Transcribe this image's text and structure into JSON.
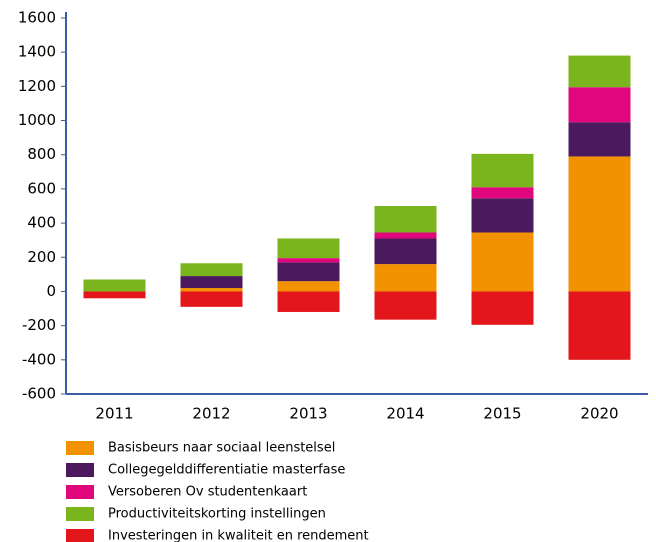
{
  "chart_data": {
    "type": "stacked_bar",
    "categories": [
      "2011",
      "2012",
      "2013",
      "2014",
      "2015",
      "2020"
    ],
    "series": [
      {
        "name": "Basisbeurs naar sociaal leenstelsel",
        "color": "#f39200",
        "values": [
          0,
          20,
          60,
          160,
          345,
          790
        ]
      },
      {
        "name": "Collegegelddifferentiatie masterfase",
        "color": "#4b1a5e",
        "values": [
          0,
          70,
          110,
          150,
          200,
          200
        ]
      },
      {
        "name": "Versoberen Ov studentenkaart",
        "color": "#e0077d",
        "values": [
          0,
          0,
          25,
          35,
          65,
          205
        ]
      },
      {
        "name": "Productiviteitskorting instellingen",
        "color": "#7ab51d",
        "values": [
          70,
          75,
          115,
          155,
          195,
          185
        ]
      },
      {
        "name": "Investeringen in kwaliteit en rendement",
        "color": "#e3161b",
        "values": [
          -40,
          -90,
          -120,
          -165,
          -195,
          -400
        ]
      }
    ],
    "ylim": [
      -600,
      1600
    ],
    "yticks": [
      -600,
      -400,
      -200,
      0,
      200,
      400,
      600,
      800,
      1000,
      1200,
      1400,
      1600
    ],
    "grid": false
  }
}
